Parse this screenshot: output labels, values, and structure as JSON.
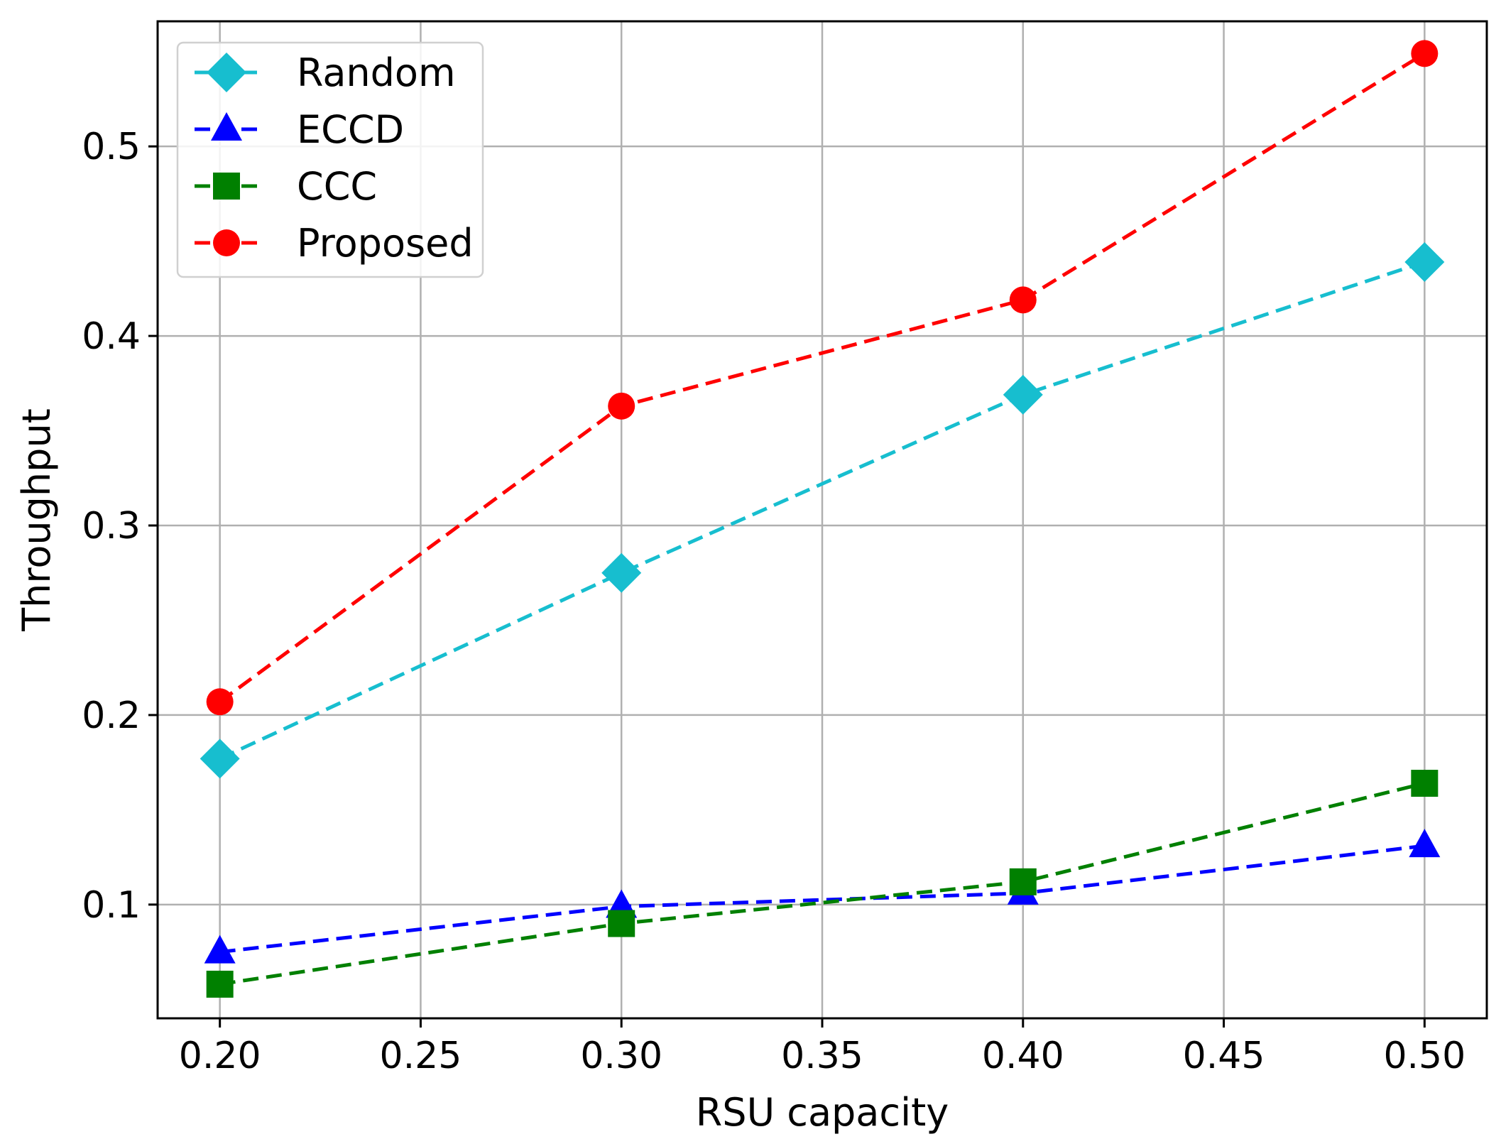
{
  "chart_data": {
    "type": "line",
    "title": "",
    "xlabel": "RSU capacity",
    "ylabel": "Throughput",
    "xlim": [
      0.1845,
      0.5155
    ],
    "ylim": [
      0.04,
      0.566
    ],
    "grid": true,
    "legend_position": "top-left",
    "x_ticks": [
      0.2,
      0.25,
      0.3,
      0.35,
      0.4,
      0.45,
      0.5
    ],
    "x_tick_labels": [
      "0.20",
      "0.25",
      "0.30",
      "0.35",
      "0.40",
      "0.45",
      "0.50"
    ],
    "y_ticks": [
      0.1,
      0.2,
      0.3,
      0.4,
      0.5
    ],
    "y_tick_labels": [
      "0.1",
      "0.2",
      "0.3",
      "0.4",
      "0.5"
    ],
    "x": [
      0.2,
      0.3,
      0.4,
      0.5
    ],
    "series": [
      {
        "name": "Random",
        "values": [
          0.177,
          0.275,
          0.369,
          0.439
        ],
        "color": "#17becf",
        "marker": "diamond"
      },
      {
        "name": "ECCD",
        "values": [
          0.075,
          0.099,
          0.106,
          0.131
        ],
        "color": "#0000ff",
        "marker": "triangle"
      },
      {
        "name": "CCC",
        "values": [
          0.058,
          0.09,
          0.112,
          0.164
        ],
        "color": "#008000",
        "marker": "square"
      },
      {
        "name": "Proposed",
        "values": [
          0.207,
          0.363,
          0.419,
          0.549
        ],
        "color": "#ff0000",
        "marker": "circle"
      }
    ]
  }
}
